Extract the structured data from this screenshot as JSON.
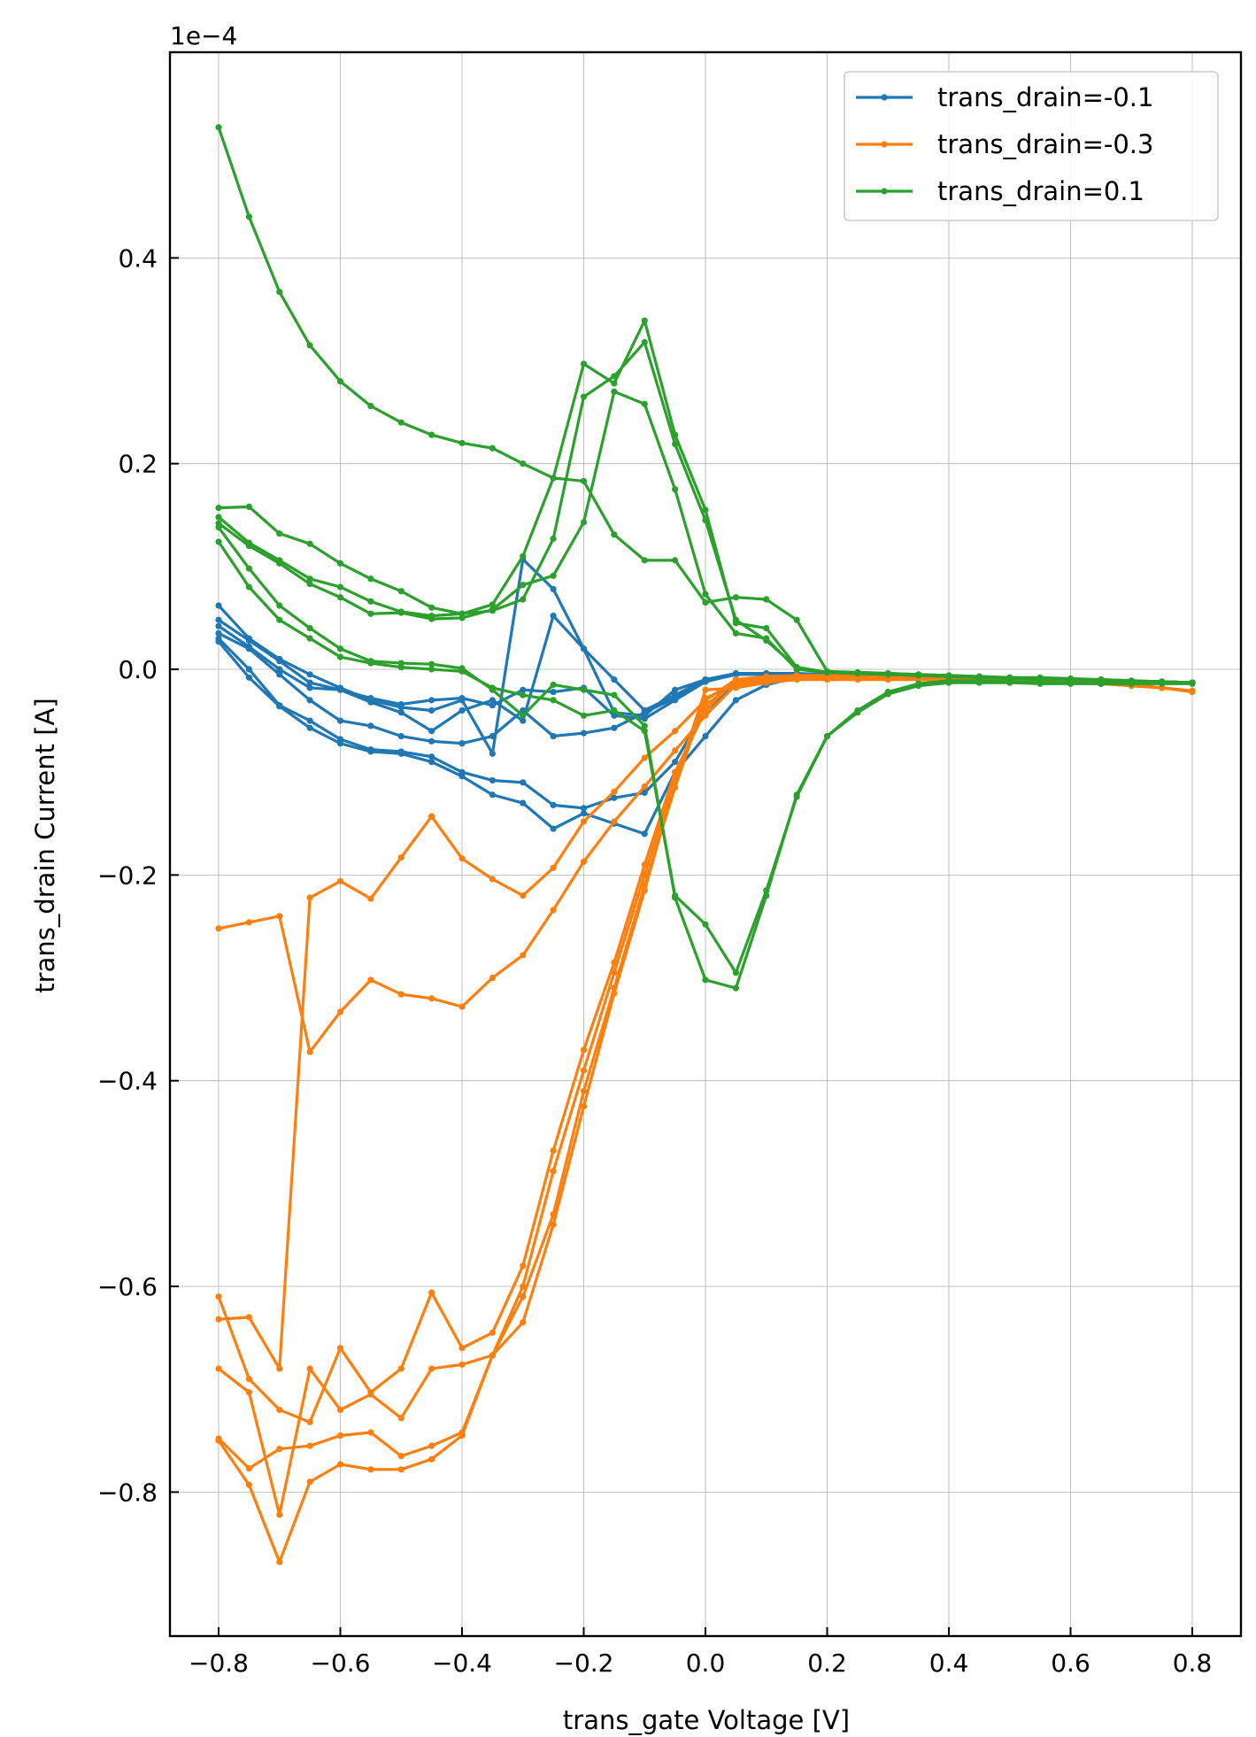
{
  "chart_data": {
    "type": "line",
    "xlabel": "trans_gate Voltage [V]",
    "ylabel": "trans_drain Current [A]",
    "offset_text": "1e−4",
    "xlim": [
      -0.88,
      0.88
    ],
    "ylim": [
      -0.94,
      0.6
    ],
    "xticks": [
      -0.8,
      -0.6,
      -0.4,
      -0.2,
      0.0,
      0.2,
      0.4,
      0.6,
      0.8
    ],
    "xtick_labels": [
      "−0.8",
      "−0.6",
      "−0.4",
      "−0.2",
      "0.0",
      "0.2",
      "0.4",
      "0.6",
      "0.8"
    ],
    "yticks": [
      -0.8,
      -0.6,
      -0.4,
      -0.2,
      0.0,
      0.2,
      0.4
    ],
    "ytick_labels": [
      "−0.8",
      "−0.6",
      "−0.4",
      "−0.2",
      "0.0",
      "0.2",
      "0.4"
    ],
    "grid": true,
    "legend_position": "top-right",
    "series": [
      {
        "name": "trans_drain=-0.1",
        "color": "#1f77b4",
        "x": [
          -0.8,
          -0.75,
          -0.7,
          -0.65,
          -0.6,
          -0.55,
          -0.5,
          -0.45,
          -0.4,
          -0.35,
          -0.3,
          -0.25,
          -0.2,
          -0.15,
          -0.1,
          -0.05,
          0.0,
          0.05,
          0.1,
          0.15,
          0.2,
          0.25,
          0.3,
          0.35,
          0.4,
          0.45,
          0.5,
          0.55,
          0.6,
          0.65,
          0.7,
          0.75,
          0.8
        ],
        "curves": [
          [
            0.062,
            0.03,
            0.01,
            -0.005,
            -0.018,
            -0.03,
            -0.037,
            -0.04,
            -0.03,
            -0.082,
            0.107,
            0.078,
            0.02,
            -0.01,
            -0.04,
            -0.025,
            -0.01,
            -0.004,
            -0.004,
            -0.004,
            -0.005,
            -0.005,
            -0.006,
            -0.007,
            -0.008,
            -0.008,
            -0.009,
            -0.01,
            -0.011,
            -0.011,
            -0.012,
            -0.012,
            -0.013
          ],
          [
            0.048,
            0.028,
            0.008,
            -0.013,
            -0.02,
            -0.028,
            -0.034,
            -0.03,
            -0.028,
            -0.035,
            -0.02,
            -0.022,
            -0.018,
            -0.045,
            -0.048,
            -0.03,
            -0.012,
            -0.005,
            -0.005,
            -0.005,
            -0.006,
            -0.006,
            -0.007,
            -0.007,
            -0.008,
            -0.009,
            -0.009,
            -0.01,
            -0.01,
            -0.011,
            -0.012,
            -0.012,
            -0.013
          ],
          [
            0.042,
            0.022,
            0.0,
            -0.018,
            -0.02,
            -0.032,
            -0.042,
            -0.06,
            -0.04,
            -0.03,
            -0.05,
            0.052,
            0.02,
            -0.042,
            -0.045,
            -0.02,
            -0.01,
            -0.004,
            -0.004,
            -0.005,
            -0.005,
            -0.006,
            -0.006,
            -0.007,
            -0.008,
            -0.008,
            -0.009,
            -0.01,
            -0.01,
            -0.011,
            -0.012,
            -0.012,
            -0.013
          ],
          [
            0.035,
            0.02,
            -0.005,
            -0.03,
            -0.05,
            -0.055,
            -0.065,
            -0.07,
            -0.072,
            -0.065,
            -0.04,
            -0.065,
            -0.062,
            -0.057,
            -0.042,
            -0.028,
            -0.012,
            -0.005,
            -0.005,
            -0.005,
            -0.006,
            -0.006,
            -0.007,
            -0.008,
            -0.008,
            -0.009,
            -0.009,
            -0.01,
            -0.011,
            -0.011,
            -0.012,
            -0.012,
            -0.013
          ],
          [
            0.03,
            0.0,
            -0.035,
            -0.05,
            -0.068,
            -0.078,
            -0.08,
            -0.085,
            -0.1,
            -0.108,
            -0.11,
            -0.132,
            -0.135,
            -0.125,
            -0.12,
            -0.09,
            -0.04,
            -0.015,
            -0.01,
            -0.007,
            -0.007,
            -0.007,
            -0.008,
            -0.008,
            -0.009,
            -0.009,
            -0.01,
            -0.01,
            -0.011,
            -0.011,
            -0.012,
            -0.012,
            -0.013
          ],
          [
            0.027,
            -0.008,
            -0.036,
            -0.057,
            -0.072,
            -0.08,
            -0.082,
            -0.09,
            -0.104,
            -0.122,
            -0.13,
            -0.155,
            -0.14,
            -0.15,
            -0.16,
            -0.1,
            -0.065,
            -0.03,
            -0.015,
            -0.008,
            -0.008,
            -0.008,
            -0.008,
            -0.009,
            -0.009,
            -0.01,
            -0.01,
            -0.011,
            -0.011,
            -0.012,
            -0.012,
            -0.013,
            -0.013
          ]
        ]
      },
      {
        "name": "trans_drain=-0.3",
        "color": "#ff7f0e",
        "x": [
          -0.8,
          -0.75,
          -0.7,
          -0.65,
          -0.6,
          -0.55,
          -0.5,
          -0.45,
          -0.4,
          -0.35,
          -0.3,
          -0.25,
          -0.2,
          -0.15,
          -0.1,
          -0.05,
          0.0,
          0.05,
          0.1,
          0.15,
          0.2,
          0.25,
          0.3,
          0.35,
          0.4,
          0.45,
          0.5,
          0.55,
          0.6,
          0.65,
          0.7,
          0.75,
          0.8
        ],
        "curves": [
          [
            -0.252,
            -0.246,
            -0.24,
            -0.372,
            -0.333,
            -0.302,
            -0.316,
            -0.32,
            -0.328,
            -0.3,
            -0.278,
            -0.234,
            -0.187,
            -0.148,
            -0.114,
            -0.079,
            -0.045,
            -0.015,
            -0.008,
            -0.006,
            -0.006,
            -0.007,
            -0.008,
            -0.008,
            -0.009,
            -0.01,
            -0.011,
            -0.012,
            -0.013,
            -0.014,
            -0.015,
            -0.018,
            -0.022
          ],
          [
            -0.632,
            -0.63,
            -0.68,
            -0.222,
            -0.206,
            -0.223,
            -0.183,
            -0.143,
            -0.184,
            -0.204,
            -0.22,
            -0.193,
            -0.148,
            -0.119,
            -0.086,
            -0.06,
            -0.03,
            -0.01,
            -0.007,
            -0.006,
            -0.006,
            -0.007,
            -0.008,
            -0.009,
            -0.009,
            -0.01,
            -0.011,
            -0.012,
            -0.013,
            -0.014,
            -0.015,
            -0.018,
            -0.021
          ],
          [
            -0.61,
            -0.69,
            -0.72,
            -0.732,
            -0.66,
            -0.703,
            -0.68,
            -0.606,
            -0.66,
            -0.645,
            -0.58,
            -0.468,
            -0.37,
            -0.285,
            -0.19,
            -0.1,
            -0.04,
            -0.01,
            -0.008,
            -0.007,
            -0.007,
            -0.008,
            -0.008,
            -0.009,
            -0.01,
            -0.01,
            -0.011,
            -0.012,
            -0.013,
            -0.014,
            -0.015,
            -0.018,
            -0.021
          ],
          [
            -0.68,
            -0.703,
            -0.822,
            -0.68,
            -0.72,
            -0.705,
            -0.728,
            -0.68,
            -0.676,
            -0.667,
            -0.6,
            -0.488,
            -0.39,
            -0.295,
            -0.2,
            -0.107,
            -0.035,
            -0.012,
            -0.01,
            -0.008,
            -0.008,
            -0.008,
            -0.009,
            -0.009,
            -0.01,
            -0.011,
            -0.011,
            -0.012,
            -0.013,
            -0.014,
            -0.016,
            -0.018,
            -0.021
          ],
          [
            -0.748,
            -0.777,
            -0.758,
            -0.755,
            -0.745,
            -0.742,
            -0.765,
            -0.755,
            -0.742,
            -0.667,
            -0.61,
            -0.53,
            -0.41,
            -0.31,
            -0.21,
            -0.115,
            -0.028,
            -0.015,
            -0.012,
            -0.009,
            -0.009,
            -0.009,
            -0.009,
            -0.01,
            -0.01,
            -0.011,
            -0.012,
            -0.012,
            -0.013,
            -0.014,
            -0.016,
            -0.018,
            -0.021
          ],
          [
            -0.75,
            -0.793,
            -0.868,
            -0.79,
            -0.773,
            -0.778,
            -0.778,
            -0.768,
            -0.745,
            -0.667,
            -0.635,
            -0.54,
            -0.425,
            -0.315,
            -0.215,
            -0.11,
            -0.02,
            -0.018,
            -0.013,
            -0.01,
            -0.01,
            -0.01,
            -0.01,
            -0.01,
            -0.011,
            -0.011,
            -0.012,
            -0.013,
            -0.013,
            -0.014,
            -0.016,
            -0.018,
            -0.021
          ]
        ]
      },
      {
        "name": "trans_drain=0.1",
        "color": "#2ca02c",
        "x": [
          -0.8,
          -0.75,
          -0.7,
          -0.65,
          -0.6,
          -0.55,
          -0.5,
          -0.45,
          -0.4,
          -0.35,
          -0.3,
          -0.25,
          -0.2,
          -0.15,
          -0.1,
          -0.05,
          0.0,
          0.05,
          0.1,
          0.15,
          0.2,
          0.25,
          0.3,
          0.35,
          0.4,
          0.45,
          0.5,
          0.55,
          0.6,
          0.65,
          0.7,
          0.75,
          0.8
        ],
        "curves": [
          [
            0.527,
            0.44,
            0.367,
            0.315,
            0.28,
            0.256,
            0.24,
            0.228,
            0.22,
            0.215,
            0.2,
            0.186,
            0.183,
            0.131,
            0.106,
            0.106,
            0.065,
            0.07,
            0.068,
            0.048,
            -0.002,
            -0.003,
            -0.004,
            -0.005,
            -0.006,
            -0.007,
            -0.008,
            -0.008,
            -0.009,
            -0.01,
            -0.011,
            -0.012,
            -0.013
          ],
          [
            0.157,
            0.158,
            0.132,
            0.122,
            0.103,
            0.088,
            0.076,
            0.06,
            0.054,
            0.063,
            0.11,
            0.186,
            0.297,
            0.278,
            0.339,
            0.228,
            0.155,
            0.045,
            0.04,
            0.002,
            -0.003,
            -0.003,
            -0.004,
            -0.005,
            -0.006,
            -0.007,
            -0.008,
            -0.009,
            -0.01,
            -0.01,
            -0.011,
            -0.012,
            -0.013
          ],
          [
            0.148,
            0.123,
            0.106,
            0.088,
            0.08,
            0.066,
            0.056,
            0.052,
            0.054,
            0.057,
            0.068,
            0.127,
            0.265,
            0.285,
            0.318,
            0.219,
            0.145,
            0.048,
            0.028,
            0.002,
            -0.003,
            -0.004,
            -0.005,
            -0.006,
            -0.007,
            -0.008,
            -0.008,
            -0.009,
            -0.01,
            -0.011,
            -0.012,
            -0.012,
            -0.013
          ],
          [
            0.142,
            0.12,
            0.103,
            0.083,
            0.07,
            0.054,
            0.055,
            0.049,
            0.05,
            0.058,
            0.082,
            0.091,
            0.143,
            0.27,
            0.258,
            0.175,
            0.073,
            0.035,
            0.03,
            0.0,
            -0.003,
            -0.004,
            -0.005,
            -0.006,
            -0.007,
            -0.008,
            -0.009,
            -0.01,
            -0.01,
            -0.011,
            -0.012,
            -0.012,
            -0.013
          ],
          [
            0.138,
            0.098,
            0.062,
            0.04,
            0.02,
            0.008,
            0.006,
            0.005,
            0.001,
            -0.02,
            -0.045,
            -0.015,
            -0.02,
            -0.025,
            -0.055,
            -0.222,
            -0.302,
            -0.31,
            -0.22,
            -0.122,
            -0.065,
            -0.04,
            -0.022,
            -0.014,
            -0.011,
            -0.011,
            -0.012,
            -0.013,
            -0.013,
            -0.014,
            -0.014,
            -0.013,
            -0.013
          ],
          [
            0.124,
            0.08,
            0.048,
            0.03,
            0.012,
            0.006,
            0.002,
            0.0,
            -0.002,
            -0.018,
            -0.025,
            -0.03,
            -0.045,
            -0.04,
            -0.06,
            -0.22,
            -0.248,
            -0.295,
            -0.215,
            -0.124,
            -0.065,
            -0.042,
            -0.024,
            -0.016,
            -0.013,
            -0.013,
            -0.013,
            -0.014,
            -0.014,
            -0.014,
            -0.014,
            -0.014,
            -0.014
          ]
        ]
      }
    ]
  }
}
